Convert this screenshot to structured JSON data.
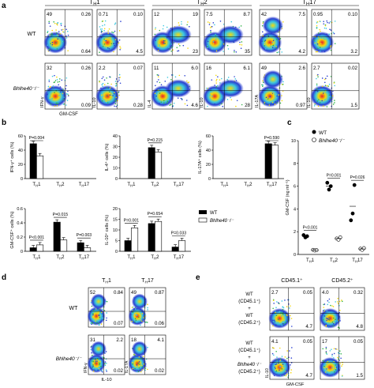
{
  "panel_labels": [
    "a",
    "b",
    "c",
    "d",
    "e"
  ],
  "panel_a": {
    "group_headers": [
      "T<sub>H</sub>1",
      "T<sub>H</sub>2",
      "T<sub>H</sub>17"
    ],
    "header_text": [
      "TH1",
      "TH2",
      "TH17"
    ],
    "row_labels": [
      "WT",
      "Bhlhe40⁻/⁻"
    ],
    "xlabel_first": "GM-CSF",
    "plots": [
      {
        "col": 0,
        "row": 0,
        "ylabel": "IFN-γ",
        "q": [
          "49",
          "0.26",
          "",
          "0.64"
        ]
      },
      {
        "col": 0,
        "row": 1,
        "ylabel": "IFN-γ",
        "q": [
          "32",
          "0.26",
          "",
          "0.09"
        ]
      },
      {
        "col": 1,
        "row": 0,
        "ylabel": "IL-10",
        "q": [
          "0.71",
          "0.10",
          "",
          "4.5"
        ]
      },
      {
        "col": 1,
        "row": 1,
        "ylabel": "IL-10",
        "q": [
          "2.2",
          "0.07",
          "",
          "0.28"
        ]
      },
      {
        "col": 2,
        "row": 0,
        "ylabel": "IL-4",
        "q": [
          "12",
          "19",
          "",
          "23"
        ]
      },
      {
        "col": 2,
        "row": 1,
        "ylabel": "IL-4",
        "q": [
          "11",
          "6.0",
          "",
          "4.6"
        ]
      },
      {
        "col": 3,
        "row": 0,
        "ylabel": "IL-10",
        "q": [
          "7.5",
          "8.7",
          "",
          "35"
        ]
      },
      {
        "col": 3,
        "row": 1,
        "ylabel": "IL-10",
        "q": [
          "16",
          "6.1",
          "",
          "28"
        ]
      },
      {
        "col": 4,
        "row": 0,
        "ylabel": "IL-17A",
        "q": [
          "42",
          "7.5",
          "",
          "4.2"
        ]
      },
      {
        "col": 4,
        "row": 1,
        "ylabel": "IL-17A",
        "q": [
          "49",
          "2.6",
          "",
          "0.97"
        ]
      },
      {
        "col": 5,
        "row": 0,
        "ylabel": "IL-10",
        "q": [
          "0.95",
          "0.10",
          "",
          "3.2"
        ]
      },
      {
        "col": 5,
        "row": 1,
        "ylabel": "IL-10",
        "q": [
          "2.7",
          "0.02",
          "",
          "1.5"
        ]
      }
    ]
  },
  "panel_b": {
    "legend": [
      "WT",
      "Bhlhe40⁻/⁻"
    ],
    "categories": [
      "T<sub>H</sub>1",
      "T<sub>H</sub>2",
      "T<sub>H</sub>17"
    ],
    "charts": [
      {
        "ylabel": "IFN-γ⁺ cells (%)",
        "ylim": [
          0,
          60
        ],
        "ticks": [
          "0",
          "20",
          "40",
          "60"
        ],
        "pval": "P=0.004",
        "pgroup": 0
      },
      {
        "ylabel": "IL-4⁺ cells (%)",
        "ylim": [
          0,
          40
        ],
        "ticks": [
          "0",
          "10",
          "20",
          "30",
          "40"
        ],
        "pval": "P=0.215",
        "pgroup": 1
      },
      {
        "ylabel": "IL-17A⁺ cells (%)",
        "ylim": [
          0,
          60
        ],
        "ticks": [
          "0",
          "20",
          "40",
          "60"
        ],
        "pval": "P=0.590",
        "pgroup": 2
      },
      {
        "ylabel": "GM-CSF⁺ cells (%)",
        "ylim": [
          0,
          0.6
        ],
        "ticks": [
          "0",
          "0.2",
          "0.4",
          "0.6"
        ],
        "pval": [
          "P<0.001",
          "P=0.015",
          "P=0.003"
        ]
      },
      {
        "ylabel": "IL-10⁺ cells (%)",
        "ylim": [
          0,
          20
        ],
        "ticks": [
          "0",
          "5",
          "10",
          "15",
          "20"
        ],
        "pval": [
          "P=0.001",
          "P=0.654",
          "P=0.033"
        ]
      }
    ]
  },
  "panel_c": {
    "ylabel": "GM-CSF (ng ml⁻¹)",
    "ticks": [
      "0",
      "2",
      "4",
      "6",
      "8",
      "10"
    ],
    "legend": [
      "WT",
      "Bhlhe40⁻/⁻"
    ],
    "pvals": [
      "P<0.001",
      "P=0.001",
      "P=0.026"
    ]
  },
  "panel_d": {
    "headers": [
      "T<sub>H</sub>1",
      "T<sub>H</sub>17"
    ],
    "row_labels": [
      "WT",
      "Bhlhe40⁻/⁻"
    ],
    "xlabel": "IL-10",
    "plots": [
      {
        "col": 0,
        "row": 0,
        "ylabel": "IFN-γ",
        "q": [
          "52",
          "0.84",
          "",
          "0.07"
        ]
      },
      {
        "col": 0,
        "row": 1,
        "ylabel": "IFN-γ",
        "q": [
          "31",
          "2.2",
          "",
          "0.02"
        ]
      },
      {
        "col": 1,
        "row": 0,
        "ylabel": "IL-17A",
        "q": [
          "49",
          "0.87",
          "",
          "0.06"
        ]
      },
      {
        "col": 1,
        "row": 1,
        "ylabel": "IL-17A",
        "q": [
          "18",
          "4.1",
          "",
          "0.02"
        ]
      }
    ]
  },
  "panel_e": {
    "headers": [
      "CD45.1⁺",
      "CD45.2⁺"
    ],
    "row_labels": [
      [
        "WT",
        "(CD45.1⁺)",
        "+",
        "WT",
        "(CD45.2⁺)"
      ],
      [
        "WT",
        "(CD45.1⁺)",
        "+",
        "Bhlhe40⁻/⁻",
        "(CD45.2⁺)"
      ]
    ],
    "xlabel": "GM-CSF",
    "plots": [
      {
        "col": 0,
        "row": 0,
        "ylabel": "IL-10",
        "q": [
          "2.7",
          "0.05",
          "",
          "4.7"
        ]
      },
      {
        "col": 0,
        "row": 1,
        "ylabel": "IL-10",
        "q": [
          "4.1",
          "0.05",
          "",
          "4.7"
        ]
      },
      {
        "col": 1,
        "row": 0,
        "ylabel": "IL-10",
        "q": [
          "4.0",
          "0.32",
          "",
          "4.8"
        ]
      },
      {
        "col": 1,
        "row": 1,
        "ylabel": "IL-10",
        "q": [
          "17",
          "0.05",
          "",
          "1.5"
        ]
      }
    ]
  },
  "chart_data": [
    {
      "type": "bar",
      "title": "",
      "ylabel": "IFN-γ⁺ cells (%)",
      "categories": [
        "TH1",
        "TH2",
        "TH17"
      ],
      "ylim": [
        0,
        60
      ],
      "series": [
        {
          "name": "WT",
          "values": [
            49,
            0,
            0
          ]
        },
        {
          "name": "Bhlhe40⁻/⁻",
          "values": [
            32,
            0,
            0
          ]
        }
      ]
    },
    {
      "type": "bar",
      "title": "",
      "ylabel": "IL-4⁺ cells (%)",
      "categories": [
        "TH1",
        "TH2",
        "TH17"
      ],
      "ylim": [
        0,
        40
      ],
      "series": [
        {
          "name": "WT",
          "values": [
            0,
            29,
            0
          ]
        },
        {
          "name": "Bhlhe40⁻/⁻",
          "values": [
            0,
            25,
            0
          ]
        }
      ]
    },
    {
      "type": "bar",
      "title": "",
      "ylabel": "IL-17A⁺ cells (%)",
      "categories": [
        "TH1",
        "TH2",
        "TH17"
      ],
      "ylim": [
        0,
        60
      ],
      "series": [
        {
          "name": "WT",
          "values": [
            0,
            0,
            49
          ]
        },
        {
          "name": "Bhlhe40⁻/⁻",
          "values": [
            0,
            0,
            47
          ]
        }
      ]
    },
    {
      "type": "bar",
      "title": "",
      "ylabel": "GM-CSF⁺ cells (%)",
      "categories": [
        "TH1",
        "TH2",
        "TH17"
      ],
      "ylim": [
        0,
        0.6
      ],
      "series": [
        {
          "name": "WT",
          "values": [
            0.05,
            0.41,
            0.12
          ]
        },
        {
          "name": "Bhlhe40⁻/⁻",
          "values": [
            0.09,
            0.16,
            0.05
          ]
        }
      ]
    },
    {
      "type": "bar",
      "title": "",
      "ylabel": "IL-10⁺ cells (%)",
      "categories": [
        "TH1",
        "TH2",
        "TH17"
      ],
      "ylim": [
        0,
        20
      ],
      "series": [
        {
          "name": "WT",
          "values": [
            5,
            13,
            2
          ]
        },
        {
          "name": "Bhlhe40⁻/⁻",
          "values": [
            11,
            14,
            5
          ]
        }
      ]
    },
    {
      "type": "scatter",
      "title": "",
      "ylabel": "GM-CSF (ng ml⁻¹)",
      "categories": [
        "TH1",
        "TH2",
        "TH17"
      ],
      "ylim": [
        0,
        10
      ],
      "series": [
        {
          "name": "WT",
          "values": [
            [
              1.7,
              1.5,
              1.6
            ],
            [
              6.3,
              5.7,
              6.0
            ],
            [
              3.0,
              3.6,
              6.1
            ]
          ]
        },
        {
          "name": "Bhlhe40⁻/⁻",
          "values": [
            [
              0.4,
              0.35,
              0.38
            ],
            [
              1.4,
              1.3,
              1.5
            ],
            [
              0.5,
              0.4,
              0.55
            ]
          ]
        }
      ]
    }
  ]
}
